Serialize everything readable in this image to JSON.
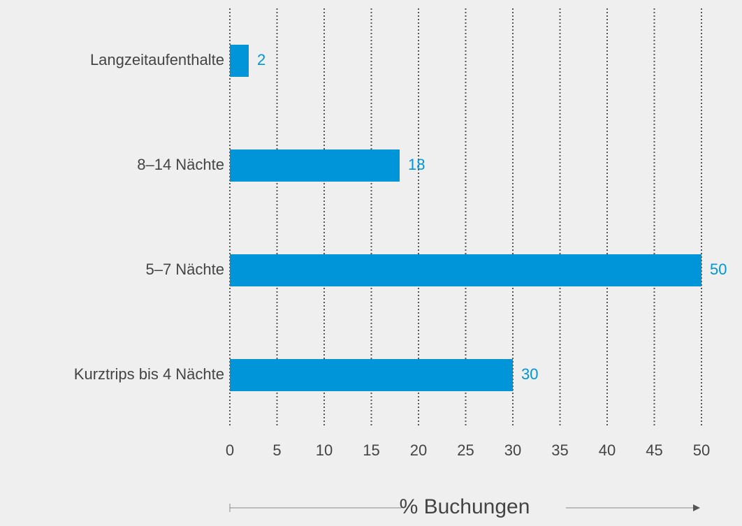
{
  "chart_data": {
    "type": "bar",
    "orientation": "horizontal",
    "categories": [
      "Langzeitaufenthalte",
      "8–14 Nächte",
      "5–7 Nächte",
      "Kurztrips bis 4 Nächte"
    ],
    "values": [
      2,
      18,
      50,
      30
    ],
    "color": "#0095d9",
    "xlabel": "% Buchungen",
    "xlim": [
      0,
      50
    ],
    "xticks": [
      0,
      5,
      10,
      15,
      20,
      25,
      30,
      35,
      40,
      45,
      50
    ],
    "grid": true
  }
}
